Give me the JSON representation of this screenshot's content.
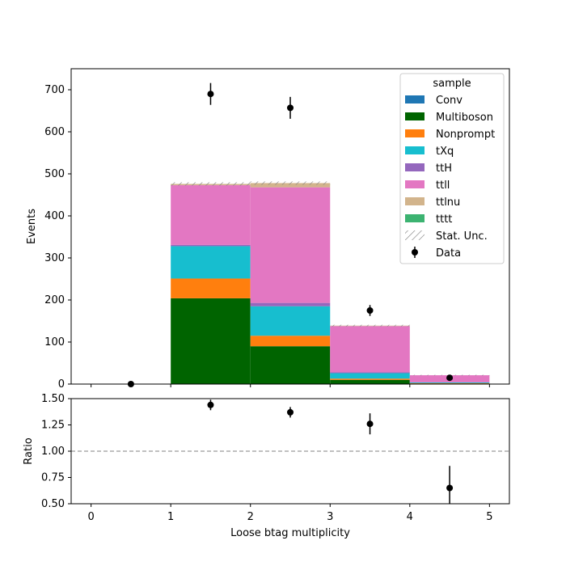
{
  "chart_data": [
    {
      "type": "bar",
      "stacked": true,
      "panel": "main",
      "ylabel": "Events",
      "xlim": [
        -0.25,
        5.25
      ],
      "ylim": [
        0,
        750
      ],
      "xticks": [
        0,
        1,
        2,
        3,
        4,
        5
      ],
      "yticks": [
        0,
        100,
        200,
        300,
        400,
        500,
        600,
        700
      ],
      "bin_edges": [
        0,
        1,
        2,
        3,
        4,
        5
      ],
      "legend": {
        "title": "sample",
        "position": "top-right"
      },
      "series": [
        {
          "name": "Conv",
          "color": "#1f77b4",
          "values": [
            0,
            1,
            0,
            0,
            0
          ]
        },
        {
          "name": "Multiboson",
          "color": "#006400",
          "values": [
            0,
            203,
            90,
            10,
            1
          ]
        },
        {
          "name": "Nonprompt",
          "color": "#ff7f0e",
          "values": [
            0,
            47,
            25,
            3,
            1
          ]
        },
        {
          "name": "tXq",
          "color": "#17becf",
          "values": [
            0,
            77,
            70,
            13,
            2
          ]
        },
        {
          "name": "ttH",
          "color": "#9467bd",
          "values": [
            0,
            3,
            8,
            2,
            0
          ]
        },
        {
          "name": "ttll",
          "color": "#e377c2",
          "values": [
            0,
            142,
            275,
            110,
            17
          ]
        },
        {
          "name": "ttlnu",
          "color": "#d2b48c",
          "values": [
            0,
            3,
            10,
            1,
            0
          ]
        },
        {
          "name": "tttt",
          "color": "#3cb371",
          "values": [
            0,
            0,
            0,
            0,
            0
          ]
        }
      ],
      "stat_unc": {
        "name": "Stat. Unc.",
        "halfwidth": [
          0,
          4,
          4,
          2,
          1
        ]
      },
      "data": {
        "name": "Data",
        "x": [
          0.5,
          1.5,
          2.5,
          3.5,
          4.5
        ],
        "y": [
          0,
          690,
          657,
          175,
          15
        ],
        "yerr": [
          0,
          26,
          26,
          13,
          4
        ]
      }
    },
    {
      "type": "scatter",
      "panel": "ratio",
      "ylabel": "Ratio",
      "xlabel": "Loose btag multiplicity",
      "xlim": [
        -0.25,
        5.25
      ],
      "ylim": [
        0.5,
        1.5
      ],
      "xticks": [
        0,
        1,
        2,
        3,
        4,
        5
      ],
      "yticks": [
        "0.50",
        "0.75",
        "1.00",
        "1.25",
        "1.50"
      ],
      "reference_line": 1.0,
      "x": [
        1.5,
        2.5,
        3.5,
        4.5
      ],
      "y": [
        1.44,
        1.37,
        1.26,
        0.65
      ],
      "yerr": [
        0.05,
        0.05,
        0.1,
        0.21
      ]
    }
  ]
}
